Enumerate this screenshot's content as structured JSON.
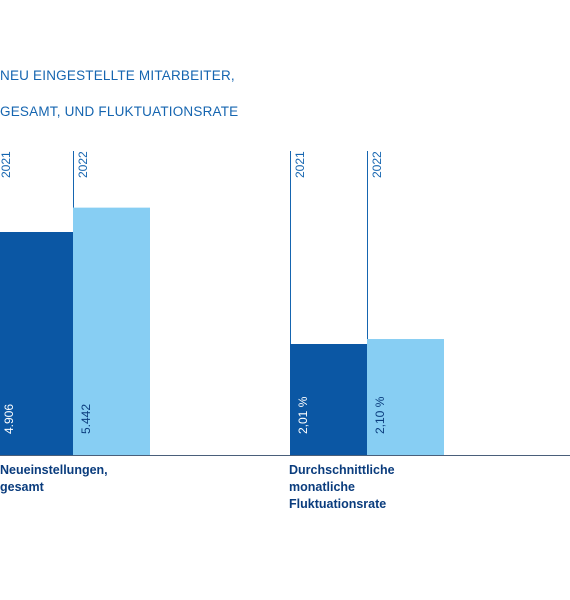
{
  "title_lines": [
    "NEU EINGESTELLTE MITARBEITER,",
    "GESAMT, UND FLUKTUATIONSRATE"
  ],
  "colors": {
    "y2021": "#0b57a4",
    "y2022": "#87cef3",
    "text": "#0a3c7d",
    "axis": "#1565b0"
  },
  "chart_data": [
    {
      "type": "bar",
      "title": "",
      "category": [
        "Neueinstellungen,",
        "gesamt"
      ],
      "series": [
        {
          "name": "2021",
          "value": 4906,
          "label": "4.906"
        },
        {
          "name": "2022",
          "value": 5442,
          "label": "5.442"
        }
      ],
      "ylim": [
        0,
        7000
      ]
    },
    {
      "type": "bar",
      "title": "",
      "category": [
        "Durchschnittliche",
        "monatliche",
        "Fluktuationsrate"
      ],
      "series": [
        {
          "name": "2021",
          "value": 2.01,
          "label": "2,01 %"
        },
        {
          "name": "2022",
          "value": 2.1,
          "label": "2,10 %"
        }
      ],
      "ylim": [
        0,
        5
      ]
    }
  ]
}
